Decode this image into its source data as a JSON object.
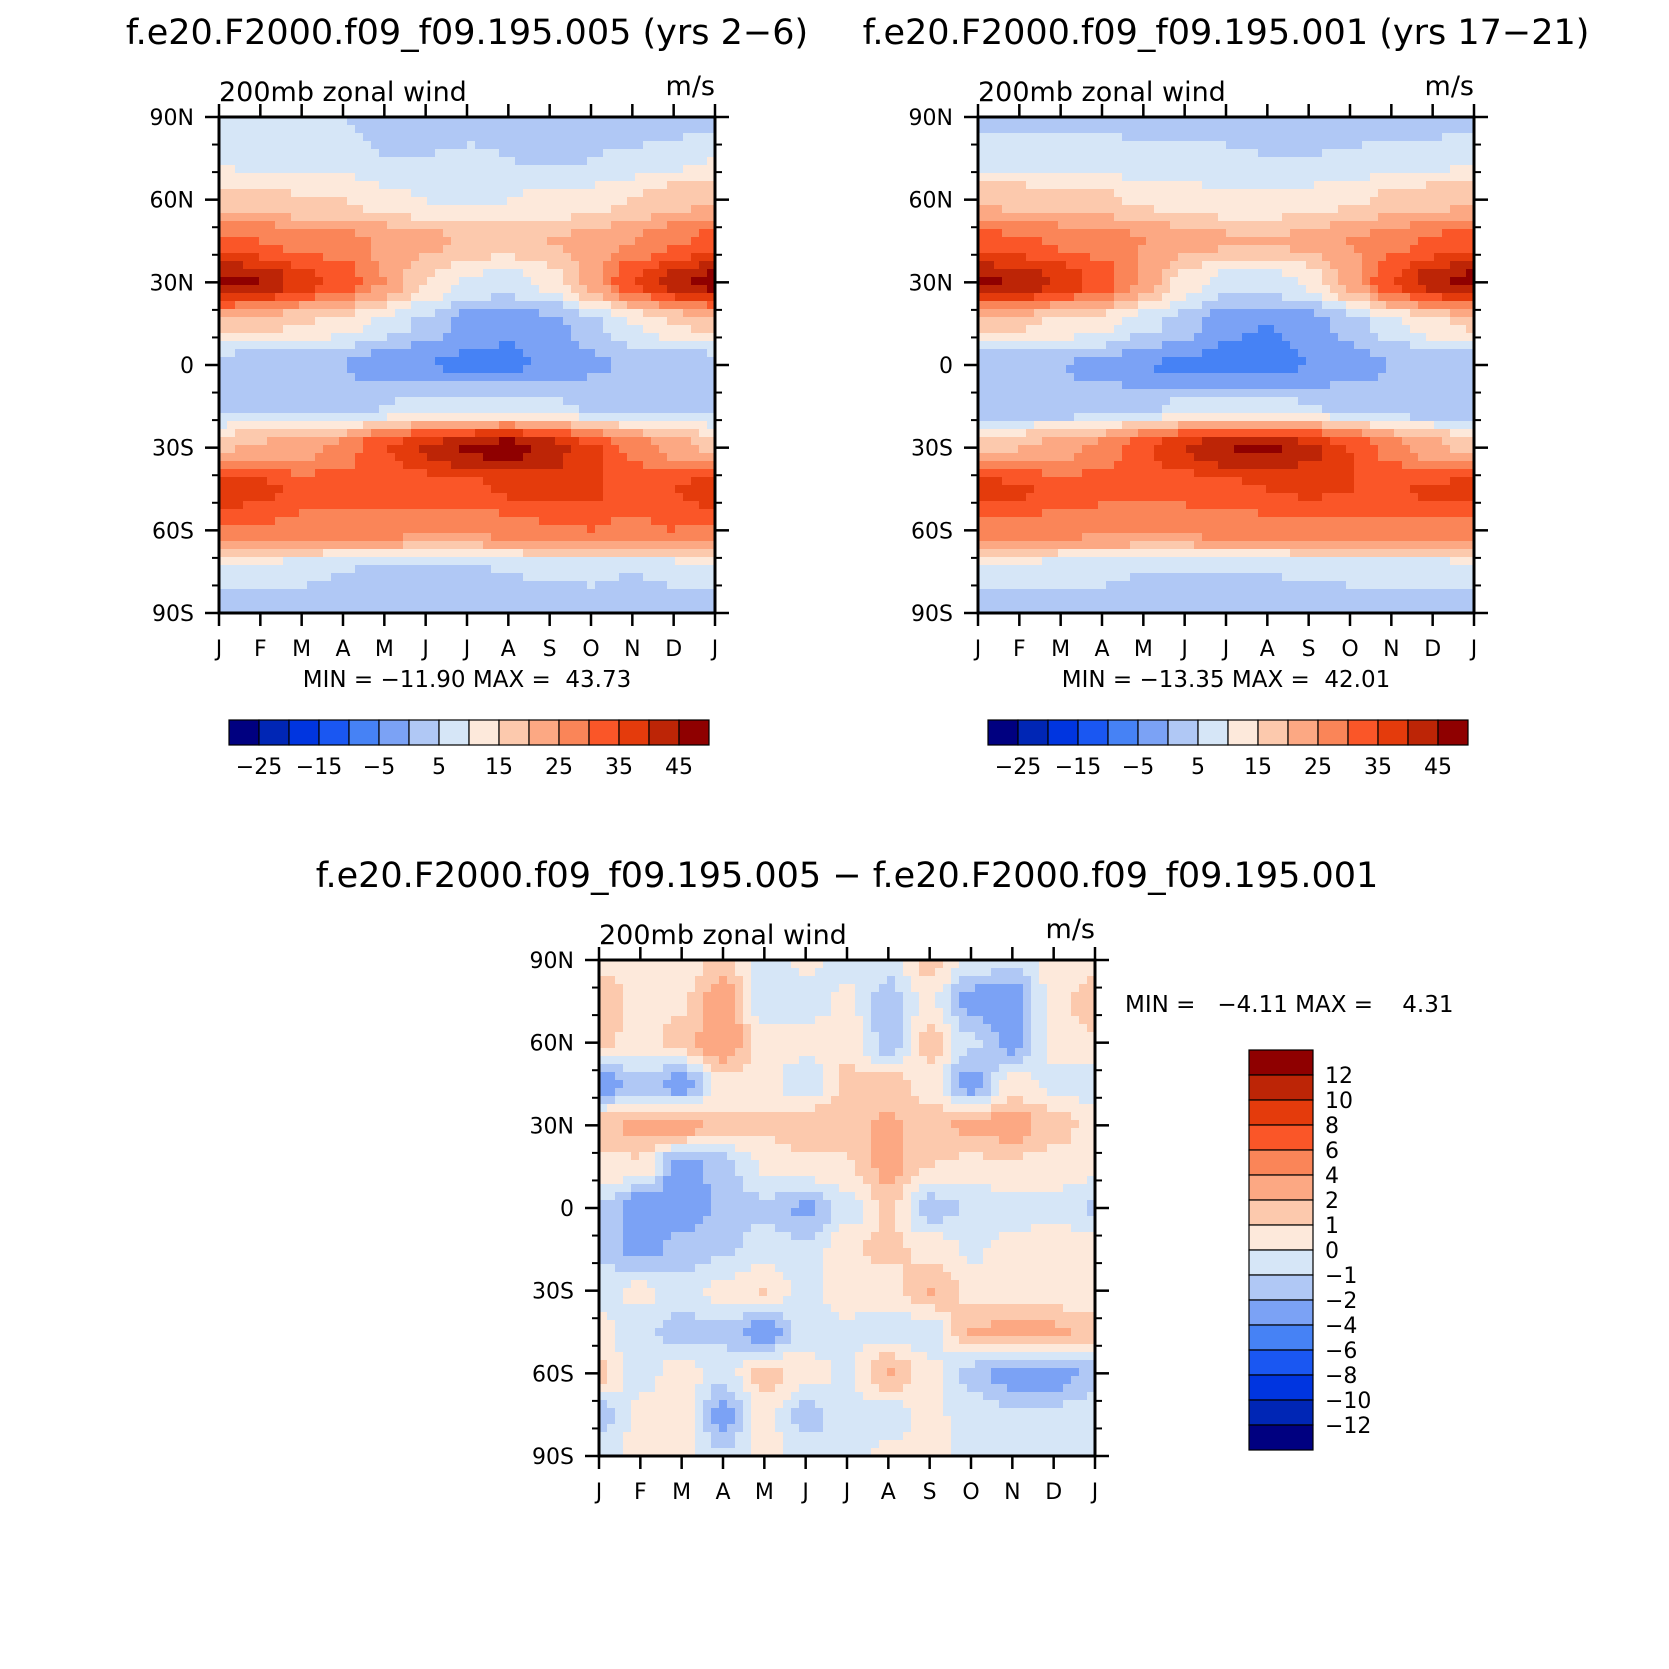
{
  "panels": [
    {
      "id": "p1",
      "title": "f.e20.F2000.f09_f09.195.005 (yrs 2−6)",
      "subtitle_left": "200mb zonal wind",
      "subtitle_right": "m/s",
      "stats": "MIN = −11.90 MAX =  43.73",
      "palette": "full",
      "field": "mean005"
    },
    {
      "id": "p2",
      "title": "f.e20.F2000.f09_f09.195.001 (yrs 17−21)",
      "subtitle_left": "200mb zonal wind",
      "subtitle_right": "m/s",
      "stats": "MIN = −13.35 MAX =  42.01",
      "palette": "full",
      "field": "mean001"
    },
    {
      "id": "p3",
      "title": "f.e20.F2000.f09_f09.195.005 − f.e20.F2000.f09_f09.195.001",
      "subtitle_left": "200mb zonal wind",
      "subtitle_right": "m/s",
      "stats": "MIN =   −4.11 MAX =    4.31",
      "palette": "diff",
      "field": "diff"
    }
  ],
  "x_ticks": [
    "J",
    "F",
    "M",
    "A",
    "M",
    "J",
    "J",
    "A",
    "S",
    "O",
    "N",
    "D",
    "J"
  ],
  "y_ticks": [
    "90N",
    "60N",
    "30N",
    "0",
    "30S",
    "60S",
    "90S"
  ],
  "colorbar_full": {
    "colors": [
      "#000080",
      "#0026b5",
      "#0035e0",
      "#1a57f2",
      "#4682f5",
      "#7ba2f5",
      "#b0c8f5",
      "#d6e6f7",
      "#fde9db",
      "#fcc9ad",
      "#fca883",
      "#fa8558",
      "#fa5628",
      "#e43b0c",
      "#bd2506",
      "#8f0000"
    ],
    "labels": [
      "−25",
      "−15",
      "−5",
      "5",
      "15",
      "25",
      "35",
      "45"
    ]
  },
  "colorbar_diff": {
    "colors": [
      "#8f0000",
      "#bd2506",
      "#e43b0c",
      "#fa5628",
      "#fa8558",
      "#fca883",
      "#fcc9ad",
      "#fde9db",
      "#d6e6f7",
      "#b0c8f5",
      "#7ba2f5",
      "#4682f5",
      "#1a57f2",
      "#0035e0",
      "#0026b5",
      "#000080"
    ],
    "labels": [
      "12",
      "10",
      "8",
      "6",
      "4",
      "2",
      "1",
      "0",
      "−1",
      "−2",
      "−4",
      "−6",
      "−8",
      "−10",
      "−12"
    ]
  },
  "chart_data": [
    {
      "type": "heatmap",
      "title": "f.e20.F2000.f09_f09.195.005 (yrs 2−6)",
      "xlabel": "",
      "ylabel": "",
      "x": [
        "J",
        "F",
        "M",
        "A",
        "M",
        "J",
        "J",
        "A",
        "S",
        "O",
        "N",
        "D",
        "J"
      ],
      "y": [
        90,
        75,
        60,
        45,
        30,
        15,
        0,
        -15,
        -30,
        -45,
        -60,
        -75,
        -90
      ],
      "values": [
        [
          1,
          1,
          1,
          0,
          -3,
          -3,
          -3,
          -2,
          -3,
          -4,
          -4,
          -3,
          -2
        ],
        [
          4,
          3,
          3,
          2,
          0,
          0,
          1,
          0,
          -1,
          0,
          1,
          3,
          5
        ],
        [
          12,
          12,
          10,
          10,
          7,
          5,
          4,
          5,
          6,
          7,
          10,
          13,
          14
        ],
        [
          26,
          25,
          22,
          22,
          19,
          17,
          14,
          13,
          15,
          17,
          20,
          24,
          27
        ],
        [
          42,
          40,
          33,
          28,
          20,
          10,
          4,
          3,
          7,
          17,
          30,
          38,
          43
        ],
        [
          13,
          12,
          10,
          8,
          3,
          -1,
          -8,
          -9,
          -7,
          -2,
          5,
          10,
          12
        ],
        [
          -3,
          -4,
          -4,
          -5,
          -9,
          -10,
          -11,
          -11,
          -9,
          -6,
          -4,
          -4,
          -3
        ],
        [
          -2,
          -2,
          -3,
          -3,
          0,
          2,
          2,
          3,
          1,
          -1,
          -3,
          -3,
          -2
        ],
        [
          14,
          16,
          18,
          22,
          30,
          36,
          41,
          43,
          38,
          31,
          24,
          18,
          14
        ],
        [
          34,
          32,
          28,
          28,
          27,
          27,
          28,
          31,
          33,
          31,
          28,
          30,
          34
        ],
        [
          24,
          25,
          23,
          22,
          22,
          21,
          21,
          22,
          24,
          25,
          24,
          25,
          24
        ],
        [
          2,
          2,
          1,
          0,
          -1,
          -1,
          -1,
          0,
          1,
          1,
          0,
          1,
          2
        ],
        [
          -2,
          -2,
          -3,
          -3,
          -2,
          -2,
          -3,
          -4,
          -4,
          -3,
          -3,
          -3,
          -2
        ]
      ],
      "levels": [
        -30,
        -25,
        -20,
        -15,
        -10,
        -5,
        0,
        5,
        10,
        15,
        20,
        25,
        30,
        35,
        40,
        45
      ],
      "min": -11.9,
      "max": 43.73,
      "units": "m/s"
    },
    {
      "type": "heatmap",
      "title": "f.e20.F2000.f09_f09.195.001 (yrs 17−21)",
      "xlabel": "",
      "ylabel": "",
      "x": [
        "J",
        "F",
        "M",
        "A",
        "M",
        "J",
        "J",
        "A",
        "S",
        "O",
        "N",
        "D",
        "J"
      ],
      "y": [
        90,
        75,
        60,
        45,
        30,
        15,
        0,
        -15,
        -30,
        -45,
        -60,
        -75,
        -90
      ],
      "values": [
        [
          -1,
          -1,
          -1,
          -1,
          -2,
          -3,
          -3,
          -4,
          -4,
          -4,
          -4,
          -3,
          -2
        ],
        [
          3,
          3,
          3,
          2,
          1,
          1,
          1,
          0,
          0,
          1,
          2,
          3,
          4
        ],
        [
          14,
          13,
          12,
          11,
          9,
          7,
          6,
          6,
          7,
          9,
          11,
          13,
          14
        ],
        [
          27,
          26,
          24,
          23,
          20,
          18,
          16,
          15,
          17,
          20,
          23,
          26,
          28
        ],
        [
          41,
          39,
          34,
          28,
          19,
          8,
          3,
          2,
          6,
          17,
          30,
          38,
          42
        ],
        [
          12,
          11,
          9,
          7,
          2,
          -2,
          -9,
          -10,
          -8,
          -3,
          4,
          9,
          11
        ],
        [
          -4,
          -5,
          -5,
          -6,
          -10,
          -11,
          -12,
          -12,
          -10,
          -7,
          -5,
          -5,
          -4
        ],
        [
          -3,
          -3,
          -4,
          -3,
          -1,
          1,
          2,
          2,
          0,
          -2,
          -4,
          -4,
          -3
        ],
        [
          13,
          15,
          18,
          22,
          29,
          35,
          40,
          41,
          37,
          30,
          23,
          17,
          13
        ],
        [
          33,
          31,
          28,
          27,
          26,
          27,
          28,
          30,
          31,
          30,
          29,
          31,
          33
        ],
        [
          23,
          24,
          22,
          21,
          21,
          21,
          22,
          22,
          23,
          24,
          24,
          24,
          23
        ],
        [
          2,
          2,
          1,
          1,
          0,
          0,
          0,
          0,
          1,
          1,
          1,
          1,
          2
        ],
        [
          -2,
          -2,
          -3,
          -3,
          -3,
          -3,
          -3,
          -4,
          -4,
          -3,
          -3,
          -3,
          -2
        ]
      ],
      "levels": [
        -30,
        -25,
        -20,
        -15,
        -10,
        -5,
        0,
        5,
        10,
        15,
        20,
        25,
        30,
        35,
        40,
        45
      ],
      "min": -13.35,
      "max": 42.01,
      "units": "m/s"
    },
    {
      "type": "heatmap",
      "title": "f.e20.F2000.f09_f09.195.005 − f.e20.F2000.f09_f09.195.001",
      "xlabel": "",
      "ylabel": "",
      "x": [
        "J",
        "F",
        "M",
        "A",
        "M",
        "J",
        "J",
        "A",
        "S",
        "O",
        "N",
        "D",
        "J"
      ],
      "y": [
        90,
        75,
        60,
        45,
        30,
        15,
        0,
        -15,
        -30,
        -45,
        -60,
        -75,
        -90
      ],
      "values": [
        [
          0.4,
          1.0,
          0.3,
          1.4,
          -0.6,
          0.2,
          -0.3,
          -0.6,
          1.5,
          -0.4,
          -0.8,
          0.3,
          0.4
        ],
        [
          2.0,
          0.5,
          0.8,
          2.8,
          -1.0,
          -0.5,
          0.2,
          -1.5,
          0.3,
          -2.5,
          -3.0,
          0.5,
          1.8
        ],
        [
          1.2,
          0.6,
          1.5,
          3.0,
          0.6,
          0.3,
          0.9,
          -1.6,
          1.5,
          -0.8,
          -2.5,
          0.2,
          0.8
        ],
        [
          -3.0,
          -1.5,
          -2.6,
          0.5,
          0.3,
          -0.7,
          1.2,
          1.5,
          0.4,
          -2.6,
          0.5,
          -0.2,
          -0.8
        ],
        [
          1.8,
          2.2,
          2.6,
          1.3,
          1.2,
          2.0,
          1.5,
          2.2,
          1.6,
          2.3,
          2.6,
          1.5,
          0.6
        ],
        [
          0.5,
          0.8,
          -2.8,
          -1.5,
          0.2,
          0.6,
          0.9,
          2.4,
          1.0,
          0.7,
          0.8,
          0.5,
          0.3
        ],
        [
          -1.0,
          -2.8,
          -3.0,
          -1.6,
          -1.2,
          -2.2,
          -0.6,
          1.2,
          -1.6,
          -0.8,
          -0.5,
          -0.3,
          -1.2
        ],
        [
          -1.2,
          -2.4,
          -1.6,
          -1.2,
          -0.6,
          -0.8,
          0.8,
          1.3,
          0.6,
          -0.2,
          0.4,
          0.5,
          0.8
        ],
        [
          -0.3,
          0.3,
          -0.5,
          0.3,
          1.1,
          -0.5,
          0.6,
          0.4,
          2.1,
          0.6,
          0.4,
          0.3,
          0.2
        ],
        [
          0.3,
          -0.8,
          -1.5,
          -1.2,
          -2.6,
          -0.6,
          -0.2,
          -0.6,
          -0.8,
          2.0,
          2.4,
          2.2,
          1.6
        ],
        [
          1.3,
          -0.5,
          0.6,
          -0.6,
          1.5,
          0.5,
          -0.3,
          2.1,
          0.4,
          -1.4,
          -2.6,
          -2.6,
          -1.5
        ],
        [
          -1.6,
          0.4,
          0.6,
          -2.6,
          0.4,
          -1.4,
          -0.4,
          -0.6,
          0.3,
          -0.5,
          -0.8,
          -0.8,
          -0.5
        ],
        [
          -0.5,
          0.3,
          0.3,
          -0.8,
          0.4,
          -0.6,
          -0.3,
          0.2,
          0.3,
          -0.2,
          -0.6,
          -0.5,
          -0.4
        ]
      ],
      "levels": [
        -12,
        -10,
        -8,
        -6,
        -4,
        -2,
        -1,
        0,
        1,
        2,
        4,
        6,
        8,
        10,
        12
      ],
      "min": -4.11,
      "max": 4.31,
      "units": "m/s"
    }
  ]
}
